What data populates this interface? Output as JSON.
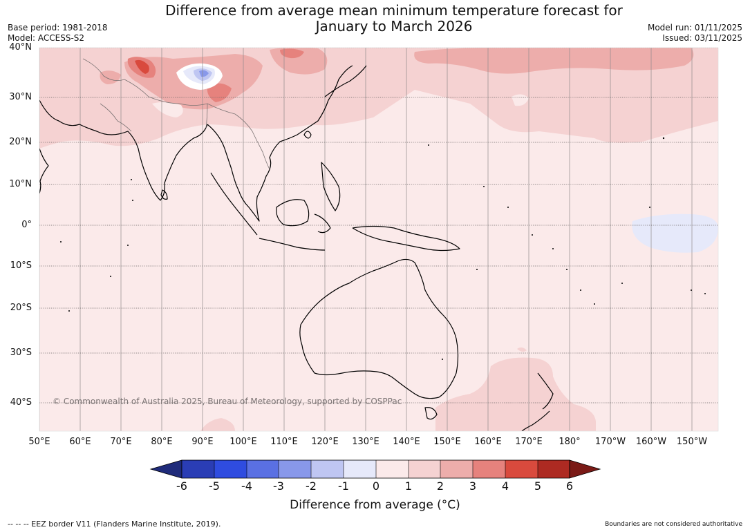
{
  "title_line1": "Difference from average mean minimum temperature forecast for",
  "title_line2": "January to March 2026",
  "base_period": "Base period: 1981-2018",
  "model": "Model: ACCESS-S2",
  "model_run": "Model run: 01/11/2025",
  "issued": "Issued: 03/11/2025",
  "lat_labels": [
    "40°N",
    "30°N",
    "20°N",
    "10°N",
    "0°",
    "10°S",
    "20°S",
    "30°S",
    "40°S"
  ],
  "lon_labels": [
    "50°E",
    "60°E",
    "70°E",
    "80°E",
    "90°E",
    "100°E",
    "110°E",
    "120°E",
    "130°E",
    "140°E",
    "150°E",
    "160°E",
    "170°E",
    "180°",
    "170°W",
    "160°W",
    "150°W"
  ],
  "copyright": "© Commonwealth of Australia 2025, Bureau of Meteorology, supported by COSPPac",
  "colorbar": {
    "ticks": [
      "-6",
      "-5",
      "-4",
      "-3",
      "-2",
      "-1",
      "0",
      "1",
      "2",
      "3",
      "4",
      "5",
      "6"
    ],
    "colors": [
      "#1f2b7a",
      "#2a3db5",
      "#2f4ce0",
      "#5a70e3",
      "#8898ea",
      "#bfc6f2",
      "#e6e9fa",
      "#fbeaea",
      "#f5d2d2",
      "#edadab",
      "#e6827d",
      "#d94a3d",
      "#ad2a22",
      "#7a1a16"
    ],
    "label": "Difference from average (°C)"
  },
  "footer_left": "--  --  -- EEZ border V11 (Flanders Marine Institute, 2019).",
  "footer_right": "Boundaries are not considered authoritative"
}
